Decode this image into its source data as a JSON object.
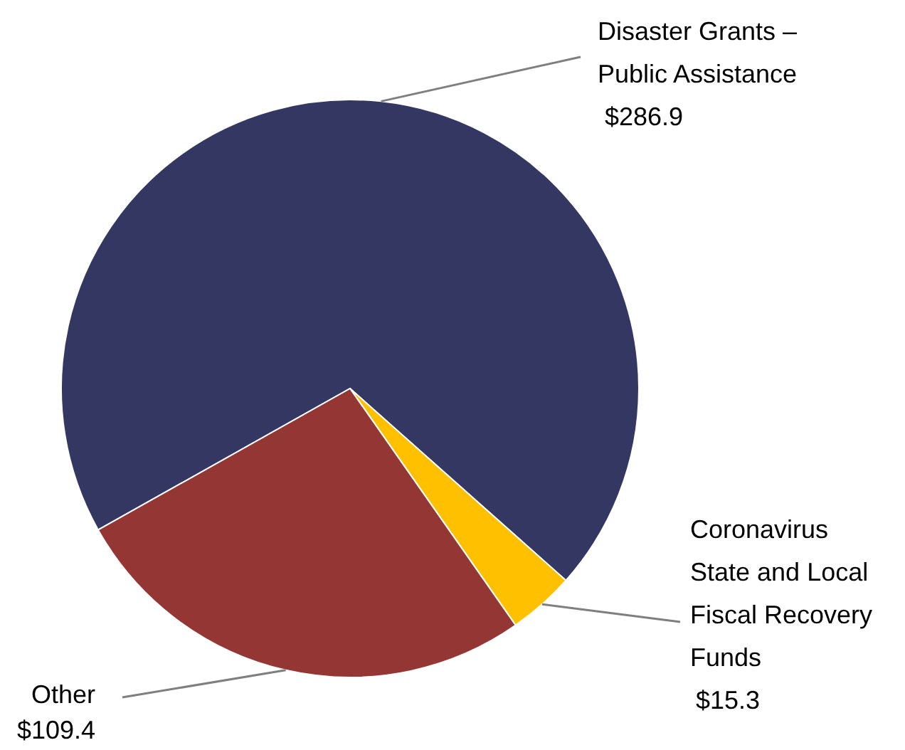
{
  "chart_data": {
    "type": "pie",
    "categories": [
      "Disaster Grants – Public Assistance",
      "Coronavirus State and Local Fiscal Recovery Funds",
      "Other"
    ],
    "values": [
      286.9,
      15.3,
      109.4
    ],
    "colors": [
      "#333761",
      "#ffc000",
      "#943634"
    ],
    "value_labels": [
      "$286.9",
      "$15.3",
      "$109.4"
    ]
  }
}
